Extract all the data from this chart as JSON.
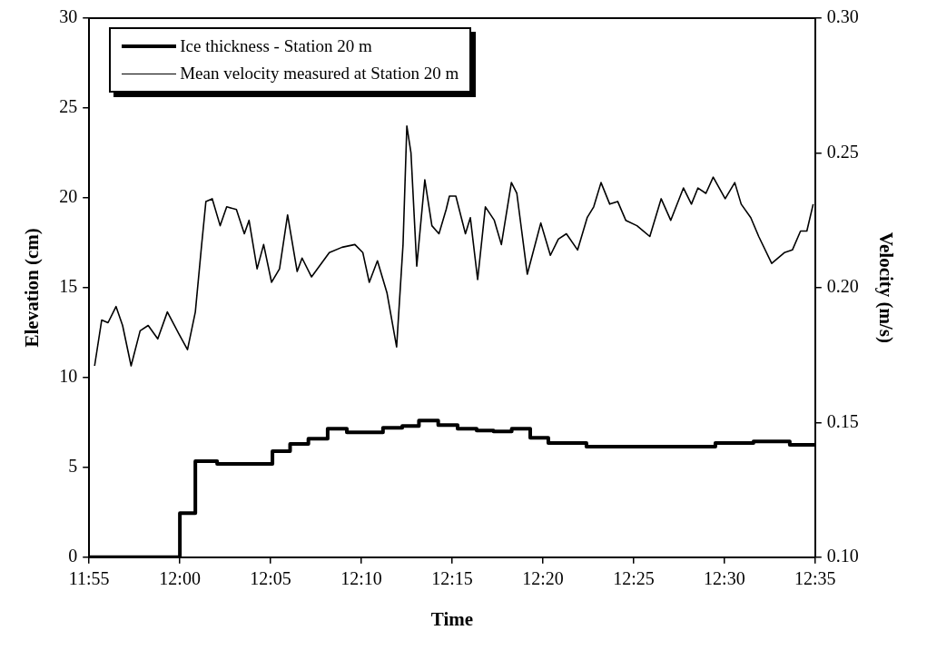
{
  "chart_data": {
    "type": "line",
    "xlabel": "Time",
    "ylabel": "Elevation (cm)",
    "y2label": "Velocity (m/s)",
    "xlim": [
      11.9167,
      12.5833
    ],
    "xticks": [
      {
        "value": 11.9167,
        "label": "11:55"
      },
      {
        "value": 12,
        "label": "12:00"
      },
      {
        "value": 12.0833,
        "label": "12:05"
      },
      {
        "value": 12.1667,
        "label": "12:10"
      },
      {
        "value": 12.25,
        "label": "12:15"
      },
      {
        "value": 12.3333,
        "label": "12:20"
      },
      {
        "value": 12.4167,
        "label": "12:25"
      },
      {
        "value": 12.5,
        "label": "12:30"
      },
      {
        "value": 12.5833,
        "label": "12:35"
      }
    ],
    "ylim": [
      0,
      30
    ],
    "yticks": [
      0,
      5,
      10,
      15,
      20,
      25,
      30
    ],
    "y2lim": [
      0.1,
      0.3
    ],
    "y2ticks": [
      {
        "value": 0.1,
        "label": "0.10"
      },
      0.15,
      {
        "value": 0.2,
        "label": "0.20"
      },
      0.25,
      {
        "value": 0.3,
        "label": "0.30"
      }
    ],
    "grid": false,
    "legend": "top left",
    "marker": "none",
    "series": [
      {
        "name": "Ice thickness - Station 20 m",
        "type": "step",
        "color": "#000000",
        "x": [
          11.9167,
          12.0,
          12.0142,
          12.0342,
          12.085,
          12.1012,
          12.118,
          12.1357,
          12.1533,
          12.1865,
          12.2042,
          12.2195,
          12.2372,
          12.255,
          12.2725,
          12.288,
          12.3047,
          12.3217,
          12.3383,
          12.3733,
          12.4917,
          12.5267,
          12.56,
          12.5833
        ],
        "values": [
          0,
          2.45,
          5.35,
          5.2,
          5.9,
          6.3,
          6.6,
          7.15,
          6.95,
          7.2,
          7.3,
          7.6,
          7.35,
          7.15,
          7.05,
          7.0,
          7.15,
          6.65,
          6.35,
          6.15,
          6.35,
          6.45,
          6.25,
          6.25
        ]
      },
      {
        "name": "Mean velocity measured at Station 20 m",
        "type": "line",
        "axis": "y2",
        "color": "#000000",
        "x": [
          11.9217,
          11.9282,
          11.934,
          11.9414,
          11.9474,
          11.9552,
          11.9635,
          11.9709,
          11.9797,
          11.9885,
          11.9989,
          12.007,
          12.0142,
          12.02,
          12.0239,
          12.0297,
          12.037,
          12.043,
          12.0519,
          12.0592,
          12.0635,
          12.0709,
          12.0769,
          12.0842,
          12.0915,
          12.0989,
          12.1077,
          12.1122,
          12.1209,
          12.1372,
          12.1489,
          12.1607,
          12.168,
          12.1739,
          12.1814,
          12.1902,
          12.199,
          12.2049,
          12.2084,
          12.2122,
          12.2175,
          12.2249,
          12.2314,
          12.2379,
          12.2445,
          12.2475,
          12.2534,
          12.2622,
          12.2667,
          12.2734,
          12.2805,
          12.2887,
          12.2952,
          12.3044,
          12.3094,
          12.319,
          12.3314,
          12.3402,
          12.3475,
          12.3549,
          12.3652,
          12.374,
          12.38,
          12.3867,
          12.3947,
          12.402,
          12.4094,
          12.4197,
          12.4315,
          12.4419,
          12.4507,
          12.4624,
          12.4697,
          12.4757,
          12.483,
          12.4897,
          12.5007,
          12.5095,
          12.5154,
          12.5242,
          12.5315,
          12.5434,
          12.555,
          12.5624,
          12.5699,
          12.5757,
          12.5815
        ],
        "values": [
          0.171,
          0.188,
          0.187,
          0.193,
          0.186,
          0.171,
          0.184,
          0.186,
          0.181,
          0.191,
          0.183,
          0.177,
          0.191,
          0.216,
          0.232,
          0.233,
          0.223,
          0.23,
          0.229,
          0.22,
          0.225,
          0.207,
          0.216,
          0.202,
          0.207,
          0.227,
          0.206,
          0.211,
          0.204,
          0.213,
          0.215,
          0.216,
          0.213,
          0.202,
          0.21,
          0.198,
          0.178,
          0.216,
          0.26,
          0.25,
          0.208,
          0.24,
          0.223,
          0.22,
          0.229,
          0.234,
          0.234,
          0.22,
          0.226,
          0.203,
          0.23,
          0.225,
          0.216,
          0.239,
          0.235,
          0.205,
          0.224,
          0.212,
          0.218,
          0.22,
          0.214,
          0.226,
          0.23,
          0.239,
          0.231,
          0.232,
          0.225,
          0.223,
          0.219,
          0.233,
          0.225,
          0.237,
          0.231,
          0.237,
          0.235,
          0.241,
          0.233,
          0.239,
          0.231,
          0.226,
          0.219,
          0.209,
          0.213,
          0.214,
          0.221,
          0.221,
          0.231
        ]
      }
    ]
  }
}
